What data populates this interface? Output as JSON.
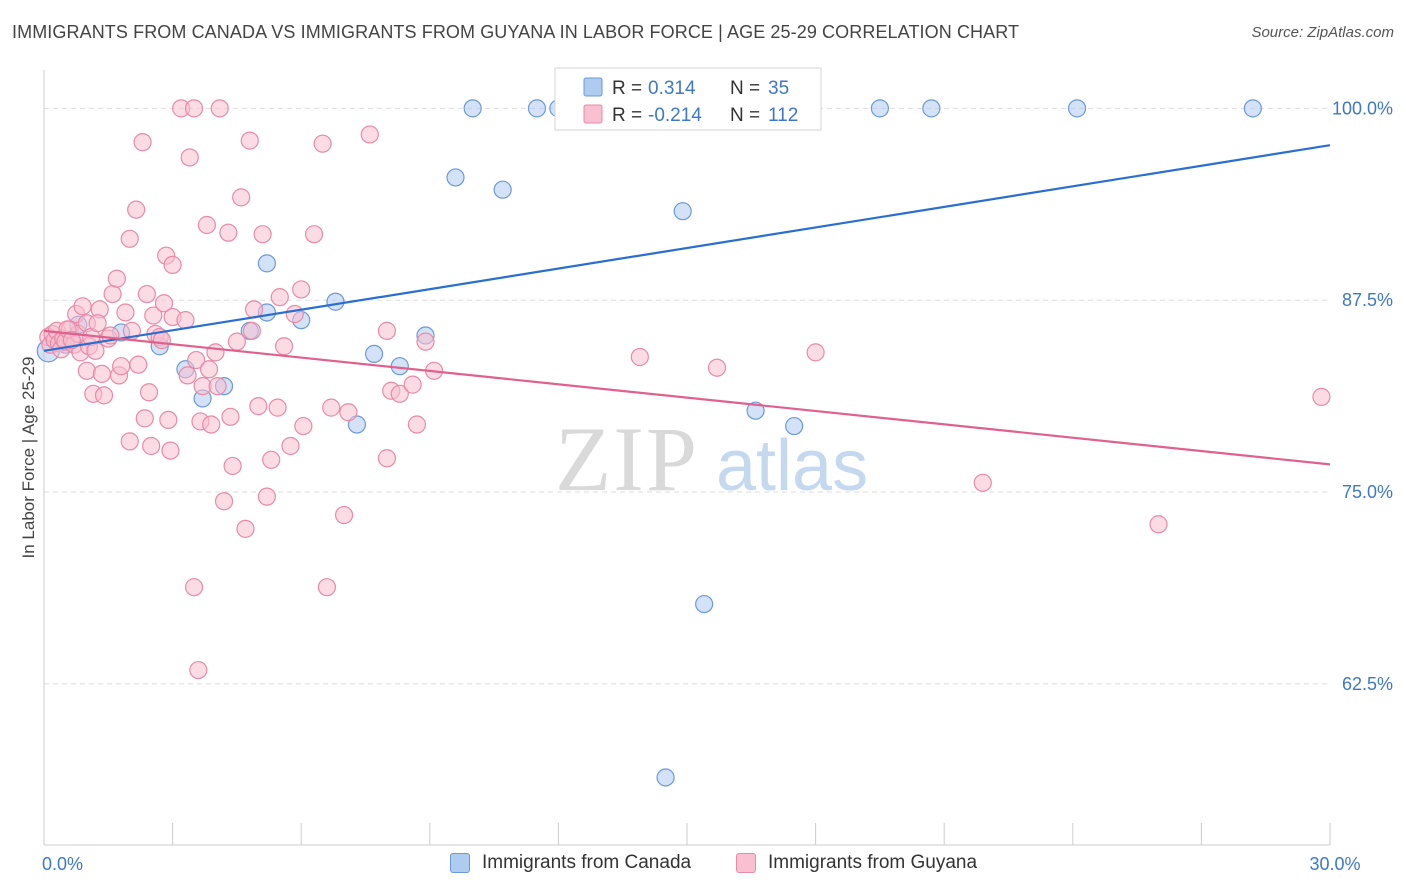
{
  "header": {
    "title": "IMMIGRANTS FROM CANADA VS IMMIGRANTS FROM GUYANA IN LABOR FORCE | AGE 25-29 CORRELATION CHART",
    "source": "Source: ZipAtlas.com"
  },
  "watermark": {
    "zip": "ZIP",
    "atlas": "atlas"
  },
  "colors": {
    "canada_fill": "#aecbf0",
    "canada_stroke": "#6b9ad8",
    "canada_line": "#2a6fd0",
    "guyana_fill": "#f8c0d0",
    "guyana_stroke": "#e88aa8",
    "guyana_line": "#e0608e",
    "axis_label": "#3d78c8",
    "grid": "#dddddd"
  },
  "chart_data": {
    "type": "scatter",
    "title": "IMMIGRANTS FROM CANADA VS IMMIGRANTS FROM GUYANA IN LABOR FORCE | AGE 25-29 CORRELATION CHART",
    "xlabel": "",
    "ylabel": "In Labor Force | Age 25-29",
    "xlim": [
      0,
      30
    ],
    "ylim": [
      52,
      102.5
    ],
    "x_tick_labels": [
      {
        "value": 0,
        "label": "0.0%"
      },
      {
        "value": 30,
        "label": "30.0%"
      }
    ],
    "y_tick_labels": [
      {
        "value": 100,
        "label": "100.0%"
      },
      {
        "value": 87.5,
        "label": "87.5%"
      },
      {
        "value": 75,
        "label": "75.0%"
      },
      {
        "value": 62.5,
        "label": "62.5%"
      }
    ],
    "grid": "horizontal dashed",
    "legend_top": [
      {
        "series": "canada",
        "r_label": "R =",
        "r_value": "0.314",
        "n_label": "N =",
        "n_value": "35"
      },
      {
        "series": "guyana",
        "r_label": "R =",
        "r_value": "-0.214",
        "n_label": "N =",
        "n_value": "112"
      }
    ],
    "legend_bottom": [
      {
        "series": "canada",
        "label": "Immigrants from Canada"
      },
      {
        "series": "guyana",
        "label": "Immigrants from Guyana"
      }
    ],
    "series": [
      {
        "name": "Immigrants from Canada",
        "key": "canada",
        "trend": {
          "x": [
            0,
            30
          ],
          "y": [
            84.2,
            97.6
          ]
        },
        "points": [
          [
            0.1,
            84.2
          ],
          [
            0.3,
            84.9
          ],
          [
            0.8,
            85.9
          ],
          [
            1.8,
            85.4
          ],
          [
            2.7,
            84.5
          ],
          [
            3.3,
            83.0
          ],
          [
            3.7,
            81.1
          ],
          [
            4.2,
            81.9
          ],
          [
            4.8,
            85.5
          ],
          [
            5.2,
            86.7
          ],
          [
            5.2,
            89.9
          ],
          [
            6.0,
            86.2
          ],
          [
            6.8,
            87.4
          ],
          [
            7.3,
            79.4
          ],
          [
            7.7,
            84.0
          ],
          [
            8.3,
            83.2
          ],
          [
            8.9,
            85.2
          ],
          [
            9.6,
            95.5
          ],
          [
            10.0,
            100.0
          ],
          [
            10.7,
            94.7
          ],
          [
            11.5,
            100.0
          ],
          [
            12.0,
            100.0
          ],
          [
            12.5,
            100.0
          ],
          [
            13.0,
            100.0
          ],
          [
            14.5,
            56.4
          ],
          [
            14.9,
            93.3
          ],
          [
            15.4,
            67.7
          ],
          [
            16.1,
            100.0
          ],
          [
            16.6,
            80.3
          ],
          [
            17.5,
            79.3
          ],
          [
            19.5,
            100.0
          ],
          [
            20.7,
            100.0
          ],
          [
            24.1,
            100.0
          ],
          [
            28.2,
            100.0
          ],
          [
            0.5,
            84.6
          ]
        ]
      },
      {
        "name": "Immigrants from Guyana",
        "key": "guyana",
        "trend": {
          "x": [
            0,
            30
          ],
          "y": [
            85.5,
            76.8
          ]
        },
        "points": [
          [
            0.1,
            85.1
          ],
          [
            0.15,
            84.6
          ],
          [
            0.2,
            85.3
          ],
          [
            0.25,
            84.9
          ],
          [
            0.3,
            85.5
          ],
          [
            0.35,
            84.7
          ],
          [
            0.4,
            84.3
          ],
          [
            0.45,
            85.0
          ],
          [
            0.5,
            84.8
          ],
          [
            0.6,
            85.6
          ],
          [
            0.7,
            84.6
          ],
          [
            0.75,
            86.6
          ],
          [
            0.8,
            85.3
          ],
          [
            0.85,
            84.1
          ],
          [
            0.9,
            87.1
          ],
          [
            1.0,
            86.0
          ],
          [
            1.0,
            82.9
          ],
          [
            1.05,
            84.5
          ],
          [
            1.1,
            85.1
          ],
          [
            1.15,
            81.4
          ],
          [
            1.2,
            84.2
          ],
          [
            1.3,
            86.9
          ],
          [
            1.35,
            82.7
          ],
          [
            1.4,
            81.3
          ],
          [
            1.5,
            85.0
          ],
          [
            1.6,
            87.9
          ],
          [
            1.7,
            88.9
          ],
          [
            1.75,
            82.6
          ],
          [
            1.8,
            83.2
          ],
          [
            1.9,
            86.7
          ],
          [
            2.0,
            91.5
          ],
          [
            2.0,
            78.3
          ],
          [
            2.05,
            85.5
          ],
          [
            2.15,
            93.4
          ],
          [
            2.2,
            83.3
          ],
          [
            2.3,
            97.8
          ],
          [
            2.35,
            79.8
          ],
          [
            2.4,
            87.9
          ],
          [
            2.45,
            81.5
          ],
          [
            2.5,
            78.0
          ],
          [
            2.55,
            86.5
          ],
          [
            2.6,
            85.3
          ],
          [
            2.7,
            85.1
          ],
          [
            2.8,
            87.3
          ],
          [
            2.85,
            90.4
          ],
          [
            2.9,
            79.7
          ],
          [
            2.95,
            77.7
          ],
          [
            3.0,
            89.8
          ],
          [
            3.0,
            86.4
          ],
          [
            3.2,
            100.0
          ],
          [
            3.3,
            86.2
          ],
          [
            3.35,
            82.6
          ],
          [
            3.4,
            96.8
          ],
          [
            3.5,
            100.0
          ],
          [
            3.5,
            68.8
          ],
          [
            3.55,
            83.6
          ],
          [
            3.6,
            63.4
          ],
          [
            3.65,
            79.6
          ],
          [
            3.7,
            81.9
          ],
          [
            3.8,
            92.4
          ],
          [
            3.85,
            83.0
          ],
          [
            3.9,
            79.4
          ],
          [
            4.0,
            84.1
          ],
          [
            4.05,
            81.9
          ],
          [
            4.1,
            100.0
          ],
          [
            4.2,
            74.4
          ],
          [
            4.3,
            91.9
          ],
          [
            4.35,
            79.9
          ],
          [
            4.4,
            76.7
          ],
          [
            4.5,
            84.8
          ],
          [
            4.6,
            94.2
          ],
          [
            4.7,
            72.6
          ],
          [
            4.8,
            97.9
          ],
          [
            4.85,
            85.5
          ],
          [
            4.9,
            86.9
          ],
          [
            5.0,
            80.6
          ],
          [
            5.1,
            91.8
          ],
          [
            5.2,
            74.7
          ],
          [
            5.3,
            77.1
          ],
          [
            5.45,
            80.5
          ],
          [
            5.5,
            87.7
          ],
          [
            5.6,
            84.5
          ],
          [
            5.75,
            78.0
          ],
          [
            5.85,
            86.6
          ],
          [
            6.0,
            88.2
          ],
          [
            6.05,
            79.3
          ],
          [
            6.3,
            91.8
          ],
          [
            6.5,
            97.7
          ],
          [
            6.6,
            68.8
          ],
          [
            6.7,
            80.5
          ],
          [
            7.0,
            73.5
          ],
          [
            7.1,
            80.2
          ],
          [
            7.6,
            98.3
          ],
          [
            8.0,
            77.2
          ],
          [
            8.0,
            85.5
          ],
          [
            8.1,
            81.6
          ],
          [
            8.3,
            81.4
          ],
          [
            8.6,
            82.0
          ],
          [
            8.7,
            79.4
          ],
          [
            8.9,
            84.8
          ],
          [
            9.1,
            82.9
          ],
          [
            13.9,
            83.8
          ],
          [
            15.7,
            83.1
          ],
          [
            18.0,
            84.1
          ],
          [
            21.9,
            75.6
          ],
          [
            26.0,
            72.9
          ],
          [
            29.8,
            81.2
          ],
          [
            0.55,
            85.6
          ],
          [
            1.25,
            86.0
          ],
          [
            1.55,
            85.2
          ],
          [
            2.75,
            84.9
          ],
          [
            0.65,
            84.9
          ]
        ]
      }
    ]
  }
}
